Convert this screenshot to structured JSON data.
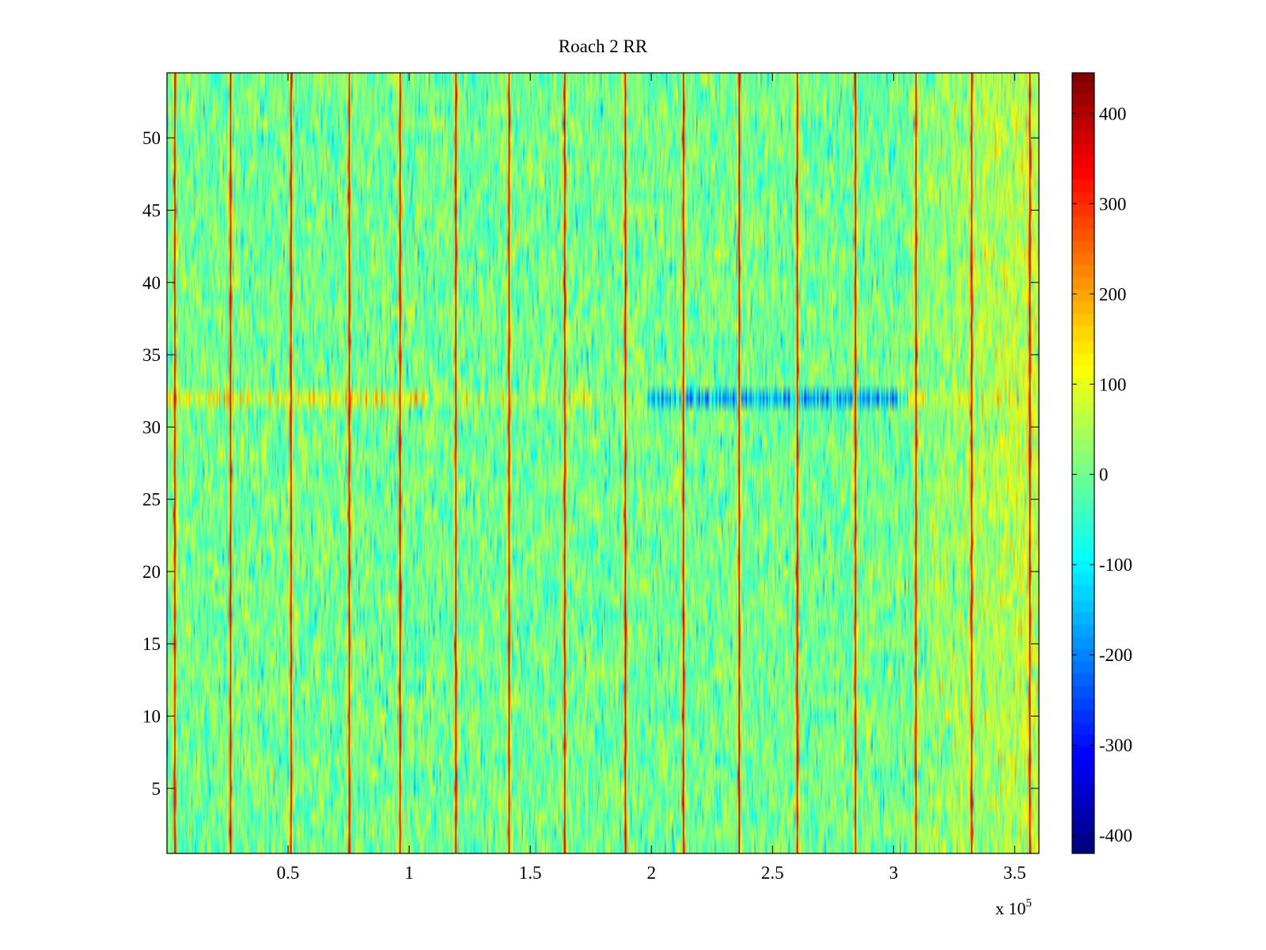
{
  "chart_data": {
    "type": "heatmap",
    "title": "Roach 2 RR",
    "xlabel": "",
    "ylabel": "",
    "x_multiplier_label": "x 10",
    "x_multiplier_exponent": "5",
    "xlim": [
      0,
      3.6
    ],
    "ylim": [
      0.5,
      54.5
    ],
    "x_ticks": [
      0.5,
      1,
      1.5,
      2,
      2.5,
      3,
      3.5
    ],
    "x_tick_labels": [
      "0.5",
      "1",
      "1.5",
      "2",
      "2.5",
      "3",
      "3.5"
    ],
    "y_ticks": [
      5,
      10,
      15,
      20,
      25,
      30,
      35,
      40,
      45,
      50
    ],
    "y_tick_labels": [
      "5",
      "10",
      "15",
      "20",
      "25",
      "30",
      "35",
      "40",
      "45",
      "50"
    ],
    "rows": 54,
    "colorbar": {
      "colormap": "jet",
      "clim": [
        -420,
        445
      ],
      "ticks": [
        400,
        300,
        200,
        100,
        0,
        -100,
        -200,
        -300,
        -400
      ],
      "tick_labels": [
        "400",
        "300",
        "200",
        "100",
        "0",
        "-100",
        "-200",
        "-300",
        "-400"
      ]
    },
    "features": {
      "baseline_value": 0,
      "periodic_spike_x": [
        0.03,
        0.26,
        0.51,
        0.75,
        0.96,
        1.19,
        1.41,
        1.64,
        1.89,
        2.13,
        2.36,
        2.6,
        2.84,
        3.09,
        3.32,
        3.56
      ],
      "spike_value": 400,
      "anomalous_row": 32,
      "right_region_bias": 60
    }
  }
}
